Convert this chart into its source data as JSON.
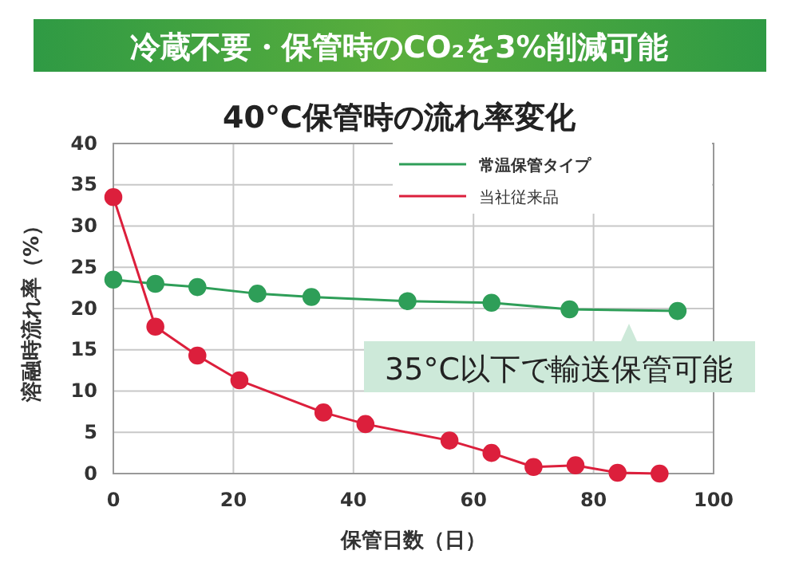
{
  "chart_data": {
    "type": "line",
    "title": "冷蔵不要・保管時のCO₂を3%削減可能",
    "subtitle": "40°C保管時の流れ率変化",
    "xlabel": "保管日数（日）",
    "ylabel": "溶融時流れ率（%）",
    "xlim": [
      0,
      100
    ],
    "xticks": [
      0,
      20,
      40,
      60,
      80,
      100
    ],
    "ylim": [
      0,
      40
    ],
    "yticks": [
      0,
      5,
      10,
      15,
      20,
      25,
      30,
      35,
      40
    ],
    "grid": true,
    "legend": "top right",
    "marker": "circle",
    "line_style": "solid",
    "series": [
      {
        "name": "常温保管タイプ",
        "color": "#2e9e58",
        "x": [
          0,
          7,
          14,
          24,
          33,
          49,
          63,
          76,
          94
        ],
        "values": [
          23.5,
          23,
          22.6,
          21.8,
          21.4,
          20.9,
          20.7,
          19.9,
          19.7
        ]
      },
      {
        "name": "当社従来品",
        "color": "#dc1f3c",
        "x": [
          0,
          7,
          14,
          21,
          35,
          42,
          56,
          63,
          70,
          77,
          84,
          91
        ],
        "values": [
          33.5,
          17.8,
          14.3,
          11.3,
          7.4,
          6,
          4,
          2.5,
          0.8,
          1,
          0.1,
          0
        ]
      }
    ],
    "annotations": [
      "35°C以下で輸送保管可能"
    ]
  }
}
